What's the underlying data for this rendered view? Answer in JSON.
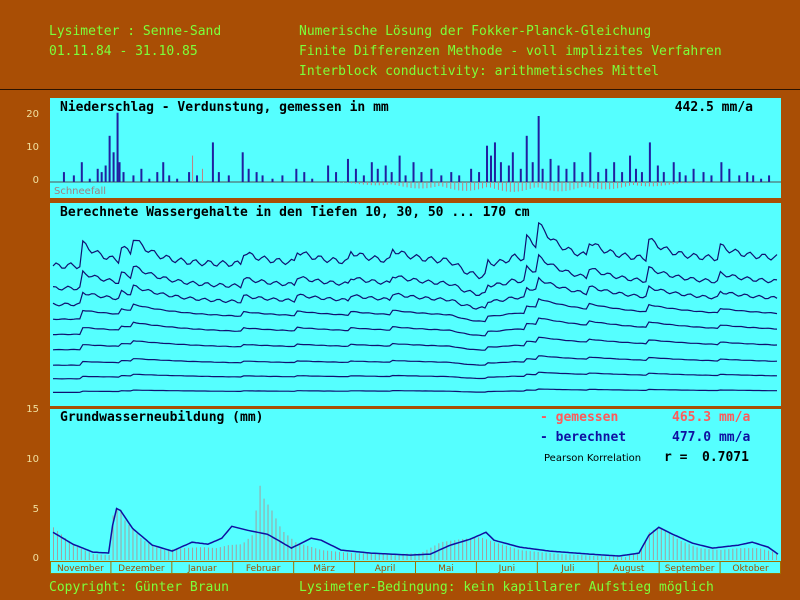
{
  "header": {
    "left_line1": "Lysimeter : Senne-Sand",
    "left_line2": "01.11.84 - 31.10.85",
    "right_line1": "Numerische Lösung der Fokker-Planck-Gleichung",
    "right_line2": "Finite Differenzen Methode - voll implizites Verfahren",
    "right_line3": "Interblock conductivity: arithmetisches Mittel"
  },
  "footer": {
    "copyright": "Copyright: Günter Braun",
    "condition": "Lysimeter-Bedingung: kein kapillarer Aufstieg möglich"
  },
  "colors": {
    "background": "#a94e05",
    "panel": "#55ffff",
    "header_text": "#7cff3b",
    "precip_bar": "#2020a0",
    "evap_bar": "#c08080",
    "measured": "#ff5a5a",
    "computed": "#1010a0",
    "measured_bar": "#a0a0a0"
  },
  "chart_data": [
    {
      "type": "bar",
      "title": "Niederschlag - Verdunstung, gemessen in mm",
      "annual_value": "442.5 mm/a",
      "snow_label": "Schneefall",
      "y_ticks": [
        "20",
        "10",
        "0"
      ],
      "ylim": [
        -3,
        23
      ],
      "x_range_days": [
        0,
        365
      ],
      "precipitation_events": [
        [
          5,
          3
        ],
        [
          10,
          2
        ],
        [
          14,
          6
        ],
        [
          18,
          1
        ],
        [
          22,
          4
        ],
        [
          24,
          3
        ],
        [
          26,
          5
        ],
        [
          28,
          14
        ],
        [
          30,
          9
        ],
        [
          32,
          21
        ],
        [
          33,
          6
        ],
        [
          35,
          3
        ],
        [
          40,
          2
        ],
        [
          44,
          4
        ],
        [
          48,
          1
        ],
        [
          52,
          3
        ],
        [
          55,
          6
        ],
        [
          58,
          2
        ],
        [
          62,
          1
        ],
        [
          68,
          3
        ],
        [
          72,
          2
        ],
        [
          80,
          12
        ],
        [
          83,
          3
        ],
        [
          88,
          2
        ],
        [
          95,
          9
        ],
        [
          98,
          4
        ],
        [
          102,
          3
        ],
        [
          105,
          2
        ],
        [
          110,
          1
        ],
        [
          115,
          2
        ],
        [
          122,
          4
        ],
        [
          126,
          3
        ],
        [
          130,
          1
        ],
        [
          138,
          5
        ],
        [
          142,
          3
        ],
        [
          148,
          7
        ],
        [
          152,
          4
        ],
        [
          156,
          2
        ],
        [
          160,
          6
        ],
        [
          163,
          4
        ],
        [
          167,
          5
        ],
        [
          170,
          3
        ],
        [
          174,
          8
        ],
        [
          177,
          2
        ],
        [
          181,
          6
        ],
        [
          185,
          3
        ],
        [
          190,
          4
        ],
        [
          195,
          2
        ],
        [
          200,
          3
        ],
        [
          204,
          2
        ],
        [
          210,
          4
        ],
        [
          214,
          3
        ],
        [
          218,
          11
        ],
        [
          220,
          8
        ],
        [
          222,
          12
        ],
        [
          225,
          6
        ],
        [
          229,
          5
        ],
        [
          231,
          9
        ],
        [
          235,
          4
        ],
        [
          238,
          14
        ],
        [
          241,
          6
        ],
        [
          244,
          20
        ],
        [
          246,
          4
        ],
        [
          250,
          7
        ],
        [
          254,
          5
        ],
        [
          258,
          4
        ],
        [
          262,
          6
        ],
        [
          266,
          3
        ],
        [
          270,
          9
        ],
        [
          274,
          3
        ],
        [
          278,
          4
        ],
        [
          282,
          6
        ],
        [
          286,
          3
        ],
        [
          290,
          8
        ],
        [
          293,
          4
        ],
        [
          296,
          3
        ],
        [
          300,
          12
        ],
        [
          304,
          5
        ],
        [
          307,
          3
        ],
        [
          312,
          6
        ],
        [
          315,
          3
        ],
        [
          318,
          2
        ],
        [
          322,
          4
        ],
        [
          327,
          3
        ],
        [
          331,
          2
        ],
        [
          336,
          6
        ],
        [
          340,
          4
        ],
        [
          345,
          2
        ],
        [
          349,
          3
        ],
        [
          352,
          2
        ],
        [
          356,
          1
        ],
        [
          360,
          2
        ]
      ],
      "snow_events": [
        [
          70,
          8
        ],
        [
          75,
          4
        ]
      ],
      "evaporation_range_days": [
        140,
        330
      ],
      "evaporation_max_mm": 3
    },
    {
      "type": "line",
      "title": "Berechnete Wassergehalte in den Tiefen 10, 30, 50 ... 170 cm",
      "depths_cm": [
        10,
        30,
        50,
        70,
        90,
        110,
        130,
        150,
        170
      ],
      "base_levels": [
        0.25,
        0.38,
        0.47,
        0.55,
        0.63,
        0.71,
        0.79,
        0.86,
        0.93
      ],
      "amplitudes": [
        0.12,
        0.08,
        0.06,
        0.045,
        0.035,
        0.025,
        0.018,
        0.012,
        0.006
      ],
      "x_range_days": [
        0,
        365
      ]
    },
    {
      "type": "area",
      "title": "Grundwasserneubildung (mm)",
      "y_ticks": [
        "15",
        "10",
        "5",
        "0"
      ],
      "ylim": [
        0,
        15
      ],
      "legend": {
        "measured_label": "- gemessen",
        "measured_value": "465.3 mm/a",
        "computed_label": "- berechnet",
        "computed_value": "477.0 mm/a",
        "pearson_label": "Pearson Korrelation",
        "r_label": "r =",
        "r_value": "0.7071"
      },
      "months": [
        "November",
        "Dezember",
        "Januar",
        "Februar",
        "März",
        "April",
        "Mai",
        "Juni",
        "Juli",
        "August",
        "September",
        "Oktober"
      ],
      "computed_series": [
        [
          0,
          2.8
        ],
        [
          10,
          1.6
        ],
        [
          20,
          0.8
        ],
        [
          28,
          0.7
        ],
        [
          30,
          3.5
        ],
        [
          32,
          5.2
        ],
        [
          34,
          5.0
        ],
        [
          40,
          3.2
        ],
        [
          50,
          1.5
        ],
        [
          60,
          0.9
        ],
        [
          70,
          1.8
        ],
        [
          78,
          1.6
        ],
        [
          85,
          2.2
        ],
        [
          90,
          3.4
        ],
        [
          98,
          3.0
        ],
        [
          108,
          2.6
        ],
        [
          115,
          1.8
        ],
        [
          120,
          1.2
        ],
        [
          130,
          2.2
        ],
        [
          135,
          2.0
        ],
        [
          145,
          1.0
        ],
        [
          160,
          0.7
        ],
        [
          180,
          0.5
        ],
        [
          190,
          0.6
        ],
        [
          200,
          1.5
        ],
        [
          210,
          2.1
        ],
        [
          218,
          2.8
        ],
        [
          222,
          2.0
        ],
        [
          235,
          1.3
        ],
        [
          250,
          0.9
        ],
        [
          270,
          0.6
        ],
        [
          285,
          0.4
        ],
        [
          295,
          0.7
        ],
        [
          300,
          2.5
        ],
        [
          305,
          3.3
        ],
        [
          312,
          2.6
        ],
        [
          322,
          1.7
        ],
        [
          332,
          1.2
        ],
        [
          345,
          1.5
        ],
        [
          352,
          1.8
        ],
        [
          360,
          1.3
        ],
        [
          365,
          0.6
        ]
      ],
      "measured_series": [
        [
          0,
          3.3
        ],
        [
          10,
          1.5
        ],
        [
          20,
          0.6
        ],
        [
          28,
          0.5
        ],
        [
          30,
          4.5
        ],
        [
          33,
          5.6
        ],
        [
          36,
          4.0
        ],
        [
          45,
          2.0
        ],
        [
          55,
          1.0
        ],
        [
          65,
          1.2
        ],
        [
          75,
          1.3
        ],
        [
          82,
          1.2
        ],
        [
          88,
          1.5
        ],
        [
          95,
          1.6
        ],
        [
          100,
          2.5
        ],
        [
          104,
          7.5
        ],
        [
          106,
          6.2
        ],
        [
          110,
          5.0
        ],
        [
          115,
          3.0
        ],
        [
          122,
          1.8
        ],
        [
          135,
          1.0
        ],
        [
          150,
          0.7
        ],
        [
          170,
          0.6
        ],
        [
          185,
          0.7
        ],
        [
          195,
          1.8
        ],
        [
          205,
          2.1
        ],
        [
          215,
          2.3
        ],
        [
          222,
          1.8
        ],
        [
          235,
          1.0
        ],
        [
          255,
          0.6
        ],
        [
          275,
          0.4
        ],
        [
          288,
          0.3
        ],
        [
          295,
          0.8
        ],
        [
          300,
          2.8
        ],
        [
          305,
          3.4
        ],
        [
          315,
          2.0
        ],
        [
          325,
          1.2
        ],
        [
          335,
          1.0
        ],
        [
          345,
          1.2
        ],
        [
          355,
          1.2
        ],
        [
          365,
          0.7
        ]
      ]
    }
  ]
}
